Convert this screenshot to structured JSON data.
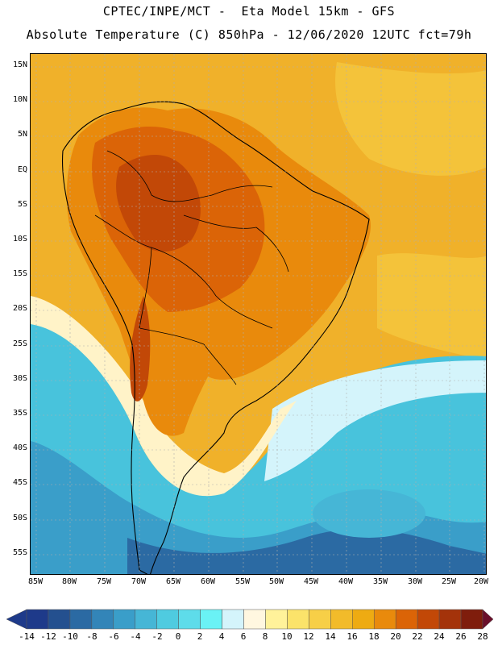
{
  "header": {
    "line1": "CPTEC/INPE/MCT -  Eta Model 15km - GFS",
    "line2": "Absolute Temperature (C) 850hPa - 12/06/2020 12UTC fct=79h"
  },
  "map": {
    "lat_labels": [
      "15N",
      "10N",
      "5N",
      "EQ",
      "5S",
      "10S",
      "15S",
      "20S",
      "25S",
      "30S",
      "35S",
      "40S",
      "45S",
      "50S",
      "55S"
    ],
    "lon_labels": [
      "85W",
      "80W",
      "75W",
      "70W",
      "65W",
      "60W",
      "55W",
      "50W",
      "45W",
      "40W",
      "35W",
      "30W",
      "25W",
      "20W"
    ]
  },
  "colorbar": {
    "labels": [
      "-14",
      "-12",
      "-10",
      "-8",
      "-6",
      "-4",
      "-2",
      "0",
      "2",
      "4",
      "6",
      "8",
      "10",
      "12",
      "14",
      "16",
      "18",
      "20",
      "22",
      "24",
      "26",
      "28"
    ],
    "colors": [
      "#5b0f2d",
      "#1e3a8a",
      "#24508f",
      "#2b6aa3",
      "#3385b8",
      "#3a9ec9",
      "#46b6d6",
      "#4fcbe0",
      "#5edcea",
      "#6af2f5",
      "#d4f4fb",
      "#fff7e0",
      "#fff29a",
      "#fbe36a",
      "#f7cf47",
      "#f2bb2a",
      "#eeab12",
      "#e98a0c",
      "#db6407",
      "#c24807",
      "#a4330a",
      "#7f1d0c",
      "#6a0f2a"
    ]
  }
}
